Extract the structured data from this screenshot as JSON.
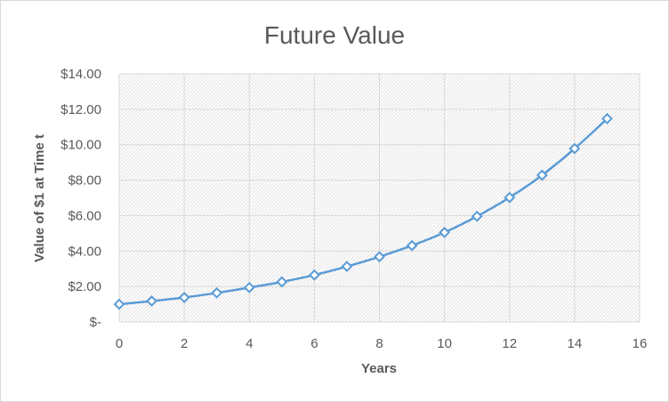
{
  "chart_data": {
    "type": "line",
    "title": "Future Value",
    "xlabel": "Years",
    "ylabel": "Value of $1 at Time t",
    "xlim": [
      0,
      16
    ],
    "ylim": [
      0,
      14
    ],
    "x_ticks": [
      0,
      2,
      4,
      6,
      8,
      10,
      12,
      14,
      16
    ],
    "y_ticks": [
      0,
      2,
      4,
      6,
      8,
      10,
      12,
      14
    ],
    "y_tick_labels": [
      "$-",
      "$2.00",
      "$4.00",
      "$6.00",
      "$8.00",
      "$10.00",
      "$12.00",
      "$14.00"
    ],
    "grid": true,
    "legend": "none",
    "colors": {
      "series": "#5b9bd5",
      "grid": "#d9d9d9",
      "text": "#595959"
    },
    "series": [
      {
        "x": [
          0,
          1,
          2,
          3,
          4,
          5,
          6,
          7,
          8,
          9,
          10,
          11,
          12,
          13,
          14,
          15
        ],
        "values": [
          1.0,
          1.18,
          1.38,
          1.64,
          1.94,
          2.26,
          2.65,
          3.13,
          3.68,
          4.31,
          5.05,
          5.96,
          7.02,
          8.28,
          9.78,
          11.47
        ]
      }
    ]
  }
}
